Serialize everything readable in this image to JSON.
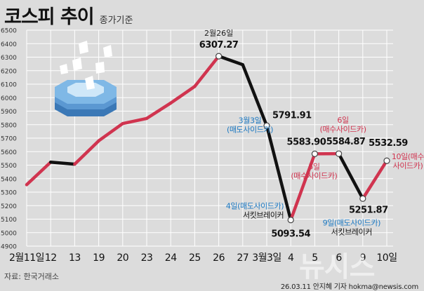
{
  "header": {
    "title": "코스피 추이",
    "subtitle": "종가기준"
  },
  "source": "자료: 한국거래소",
  "credit": "26.03.11 안지혜 기자 hokma@newsis.com",
  "watermark": "뉴시스",
  "colors": {
    "line_up": "#d0344f",
    "line_down": "#111111",
    "annotation_red": "#d0344f",
    "annotation_blue": "#1a78c2",
    "grid": "#ffffff",
    "background": "#dcdcdc"
  },
  "chart_data": {
    "type": "line",
    "title": "코스피 추이",
    "subtitle": "종가기준",
    "y_ticks": [
      4900,
      5000,
      5100,
      5200,
      5300,
      5400,
      5500,
      5600,
      5700,
      5800,
      5900,
      6000,
      6100,
      6200,
      6300,
      6400,
      6500
    ],
    "ylim": [
      4900,
      6500
    ],
    "grid": true,
    "x_labels": [
      "2월11일",
      "12",
      "13",
      "19",
      "20",
      "23",
      "24",
      "25",
      "26",
      "27",
      "3월3일",
      "4",
      "5",
      "6",
      "9",
      "10일"
    ],
    "series": [
      {
        "values": [
          5355,
          5522,
          5507,
          5680,
          5808,
          5846,
          5960,
          6083,
          6307.27,
          6244,
          5791.91,
          5093.54,
          5583.9,
          5584.87,
          5251.87,
          5532.59
        ]
      }
    ],
    "annotations": [
      {
        "index": 8,
        "date": "2월26일",
        "value": "6307.27"
      },
      {
        "index": 10,
        "value": "5791.91",
        "note": "3월3일\n(매도사이드카)"
      },
      {
        "index": 11,
        "value": "5093.54",
        "note": "4일(매도사이드카)\n서킷브레이커"
      },
      {
        "index": 12,
        "value": "5583.90",
        "note": "5일\n(매수사이드카)"
      },
      {
        "index": 13,
        "value": "5584.87",
        "note": "6일\n(매수사이드카)"
      },
      {
        "index": 14,
        "value": "5251.87",
        "note": "9일(매도사이드카)\n서킷브레이커"
      },
      {
        "index": 15,
        "value": "5532.59",
        "note": "10일(매수\n사이드카)"
      }
    ]
  }
}
